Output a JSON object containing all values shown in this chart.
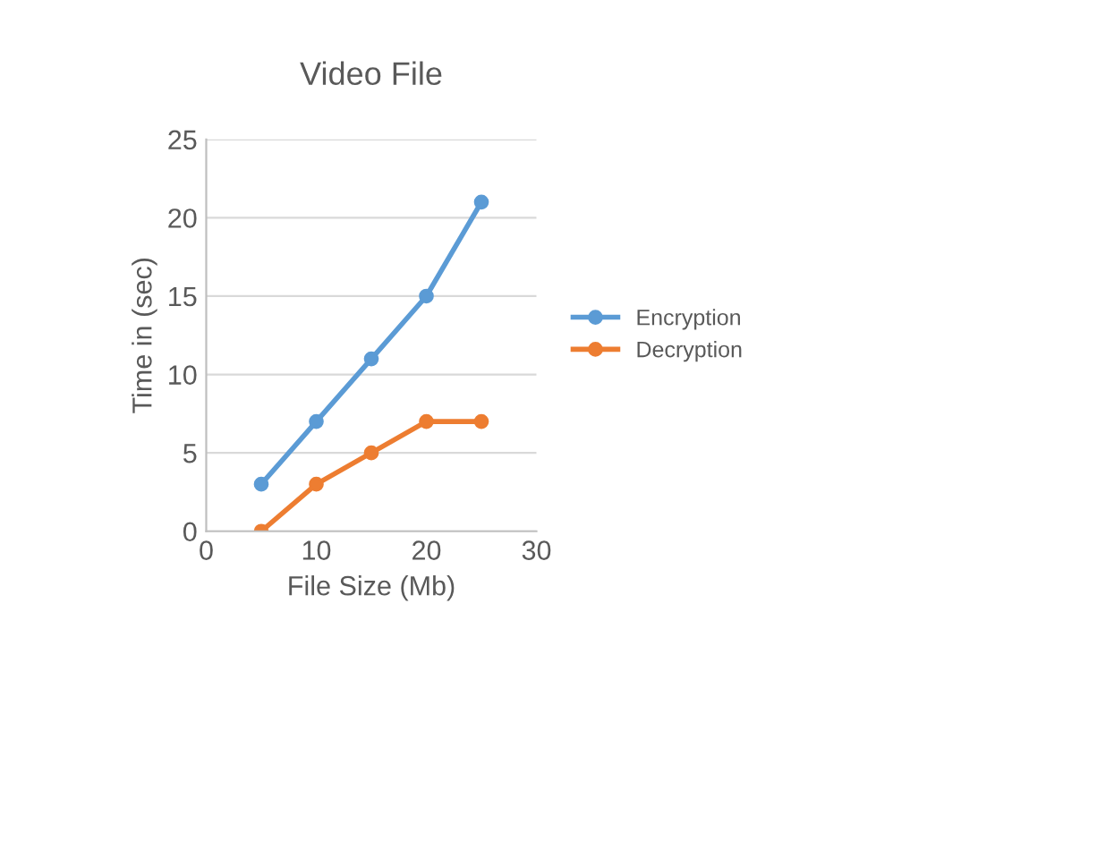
{
  "chart_data": {
    "type": "line",
    "title": "Video File",
    "xlabel": "File Size (Mb)",
    "ylabel": "Time in (sec)",
    "x": [
      5,
      10,
      15,
      20,
      25
    ],
    "series": [
      {
        "name": "Encryption",
        "color": "#5b9bd5",
        "values": [
          3,
          7,
          11,
          15,
          21
        ]
      },
      {
        "name": "Decryption",
        "color": "#ed7d31",
        "values": [
          0,
          3,
          5,
          7,
          7
        ]
      }
    ],
    "xlim": [
      0,
      30
    ],
    "xticks": [
      0,
      10,
      20,
      30
    ],
    "ylim": [
      0,
      25
    ],
    "yticks": [
      0,
      5,
      10,
      15,
      20,
      25
    ],
    "grid": "y",
    "legend": "right",
    "marker": "circle",
    "line_style": "solid"
  }
}
